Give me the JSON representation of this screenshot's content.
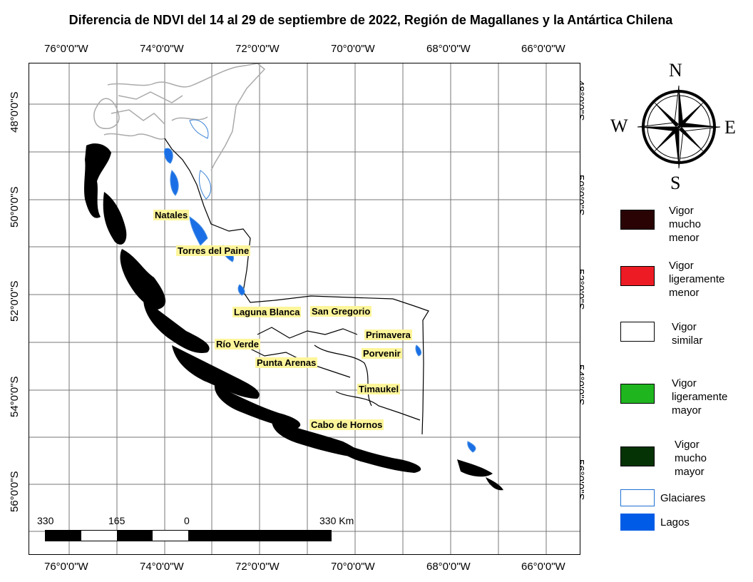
{
  "title": "Diferencia de NDVI del 14 al 29 de septiembre de 2022, Región de Magallanes y la Antártica Chilena",
  "longitude_labels": [
    "76°0'0\"W",
    "74°0'0\"W",
    "72°0'0\"W",
    "70°0'0\"W",
    "68°0'0\"W",
    "66°0'0\"W"
  ],
  "latitude_labels": [
    "48°0'0\"S",
    "50°0'0\"S",
    "52°0'0\"S",
    "54°0'0\"S",
    "56°0'0\"S"
  ],
  "places": [
    "Natales",
    "Torres del Paine",
    "Laguna Blanca",
    "San Gregorio",
    "Primavera",
    "Río Verde",
    "Porvenir",
    "Punta Arenas",
    "Timaukel",
    "Cabo de Hornos"
  ],
  "compass": {
    "n": "N",
    "s": "S",
    "e": "E",
    "w": "W"
  },
  "legend": [
    {
      "label": "Vigor\nmucho\nmenor",
      "color": "#2a0404"
    },
    {
      "label": "Vigor\nligeramente\nmenor",
      "color": "#ed1c24"
    },
    {
      "label": "Vigor\nsimilar",
      "color": "#ffffff"
    },
    {
      "label": "Vigor\nligeramente\nmayor",
      "color": "#1fb51f"
    },
    {
      "label": "Vigor\nmucho\nmayor",
      "color": "#063306"
    }
  ],
  "legend_extra": [
    {
      "label": "Glaciares",
      "color": "#ffffff",
      "border": "#1f6fd1"
    },
    {
      "label": "Lagos",
      "color": "#005ce6"
    }
  ],
  "scale_bar": {
    "labels": [
      "330",
      "165",
      "0",
      "330 Km"
    ]
  }
}
